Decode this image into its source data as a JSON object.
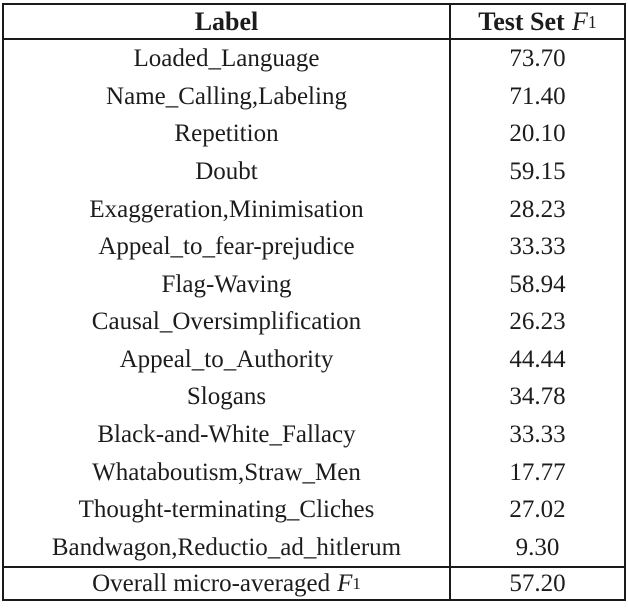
{
  "table": {
    "header": {
      "col1": "Label",
      "col2_text": "Test Set",
      "col2_math": "F",
      "col2_sub": "1"
    },
    "rows": [
      {
        "label": "Loaded_Language",
        "value": "73.70"
      },
      {
        "label": "Name_Calling,Labeling",
        "value": "71.40"
      },
      {
        "label": "Repetition",
        "value": "20.10"
      },
      {
        "label": "Doubt",
        "value": "59.15"
      },
      {
        "label": "Exaggeration,Minimisation",
        "value": "28.23"
      },
      {
        "label": "Appeal_to_fear-prejudice",
        "value": "33.33"
      },
      {
        "label": "Flag-Waving",
        "value": "58.94"
      },
      {
        "label": "Causal_Oversimplification",
        "value": "26.23"
      },
      {
        "label": "Appeal_to_Authority",
        "value": "44.44"
      },
      {
        "label": "Slogans",
        "value": "34.78"
      },
      {
        "label": "Black-and-White_Fallacy",
        "value": "33.33"
      },
      {
        "label": "Whataboutism,Straw_Men",
        "value": "17.77"
      },
      {
        "label": "Thought-terminating_Cliches",
        "value": "27.02"
      },
      {
        "label": "Bandwagon,Reductio_ad_hitlerum",
        "value": "9.30"
      }
    ],
    "footer": {
      "label_text": "Overall micro-averaged",
      "label_math": "F",
      "label_sub": "1",
      "value": "57.20"
    }
  },
  "chart_data": {
    "type": "table",
    "columns": [
      "Label",
      "Test Set F1"
    ],
    "rows": [
      [
        "Loaded_Language",
        73.7
      ],
      [
        "Name_Calling,Labeling",
        71.4
      ],
      [
        "Repetition",
        20.1
      ],
      [
        "Doubt",
        59.15
      ],
      [
        "Exaggeration,Minimisation",
        28.23
      ],
      [
        "Appeal_to_fear-prejudice",
        33.33
      ],
      [
        "Flag-Waving",
        58.94
      ],
      [
        "Causal_Oversimplification",
        26.23
      ],
      [
        "Appeal_to_Authority",
        44.44
      ],
      [
        "Slogans",
        34.78
      ],
      [
        "Black-and-White_Fallacy",
        33.33
      ],
      [
        "Whataboutism,Straw_Men",
        17.77
      ],
      [
        "Thought-terminating_Cliches",
        27.02
      ],
      [
        "Bandwagon,Reductio_ad_hitlerum",
        9.3
      ]
    ],
    "footer": [
      "Overall micro-averaged F1",
      57.2
    ]
  }
}
